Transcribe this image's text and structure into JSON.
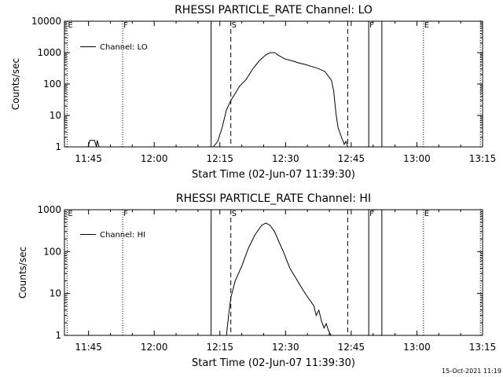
{
  "footer_timestamp": "15-Oct-2021 11:19",
  "chart_data": [
    {
      "type": "line",
      "title": "RHESSI PARTICLE_RATE Channel: LO",
      "xlabel": "Start Time (02-Jun-07 11:39:30)",
      "ylabel": "Counts/sec",
      "yscale": "log",
      "ylim": [
        1,
        10000
      ],
      "xlim_minutes_after_11_00": [
        39.5,
        135
      ],
      "x_ticks": [
        {
          "t": 45,
          "label": "11:45"
        },
        {
          "t": 60,
          "label": "12:00"
        },
        {
          "t": 75,
          "label": "12:15"
        },
        {
          "t": 90,
          "label": "12:30"
        },
        {
          "t": 105,
          "label": "12:45"
        },
        {
          "t": 120,
          "label": "13:00"
        },
        {
          "t": 135,
          "label": "13:15"
        }
      ],
      "y_ticks": [
        {
          "v": 1,
          "label": "1"
        },
        {
          "v": 10,
          "label": "10"
        },
        {
          "v": 100,
          "label": "100"
        },
        {
          "v": 1000,
          "label": "1000"
        },
        {
          "v": 10000,
          "label": "10000"
        }
      ],
      "legend": "Channel: LO",
      "markers": [
        {
          "t": 40.1,
          "style": "dotted",
          "label": "E"
        },
        {
          "t": 52.8,
          "style": "dotted",
          "label": "F"
        },
        {
          "t": 73.0,
          "style": "solid",
          "label": ""
        },
        {
          "t": 77.5,
          "style": "dashed",
          "label": "S"
        },
        {
          "t": 104.2,
          "style": "dashed",
          "label": ""
        },
        {
          "t": 109.0,
          "style": "solid",
          "label": "F"
        },
        {
          "t": 112.0,
          "style": "solid",
          "label": ""
        },
        {
          "t": 121.5,
          "style": "dotted",
          "label": "E"
        },
        {
          "t": 134.5,
          "style": "dotted",
          "label": ""
        }
      ],
      "series": [
        {
          "name": "Channel: LO",
          "segments": [
            [
              [
                44.9,
                1
              ],
              [
                45.3,
                1.6
              ],
              [
                45.8,
                1.6
              ],
              [
                46.4,
                1.6
              ],
              [
                46.8,
                1
              ],
              [
                47.0,
                1.6
              ],
              [
                47.4,
                1
              ]
            ],
            [
              [
                73.5,
                1
              ],
              [
                74.5,
                1.5
              ],
              [
                75.5,
                4
              ],
              [
                76.5,
                15
              ],
              [
                77.5,
                30
              ],
              [
                78.5,
                50
              ],
              [
                79.5,
                85
              ],
              [
                81.0,
                140
              ],
              [
                82.5,
                300
              ],
              [
                84.0,
                550
              ],
              [
                85.5,
                850
              ],
              [
                86.5,
                1000
              ],
              [
                87.5,
                1000
              ],
              [
                88.5,
                800
              ],
              [
                90.0,
                620
              ],
              [
                91.5,
                550
              ],
              [
                93.0,
                470
              ],
              [
                94.5,
                420
              ],
              [
                96.0,
                360
              ],
              [
                97.5,
                310
              ],
              [
                99.0,
                250
              ],
              [
                100.5,
                130
              ],
              [
                101.0,
                60
              ],
              [
                101.5,
                12
              ],
              [
                102.0,
                4
              ],
              [
                102.8,
                2
              ],
              [
                103.4,
                1.2
              ],
              [
                103.8,
                1.5
              ],
              [
                104.2,
                1
              ]
            ]
          ]
        }
      ]
    },
    {
      "type": "line",
      "title": "RHESSI PARTICLE_RATE Channel: HI",
      "xlabel": "Start Time (02-Jun-07 11:39:30)",
      "ylabel": "Counts/sec",
      "yscale": "log",
      "ylim": [
        1,
        1000
      ],
      "xlim_minutes_after_11_00": [
        39.5,
        135
      ],
      "x_ticks": [
        {
          "t": 45,
          "label": "11:45"
        },
        {
          "t": 60,
          "label": "12:00"
        },
        {
          "t": 75,
          "label": "12:15"
        },
        {
          "t": 90,
          "label": "12:30"
        },
        {
          "t": 105,
          "label": "12:45"
        },
        {
          "t": 120,
          "label": "13:00"
        },
        {
          "t": 135,
          "label": "13:15"
        }
      ],
      "y_ticks": [
        {
          "v": 1,
          "label": "1"
        },
        {
          "v": 10,
          "label": "10"
        },
        {
          "v": 100,
          "label": "100"
        },
        {
          "v": 1000,
          "label": "1000"
        }
      ],
      "legend": "Channel: HI",
      "markers": [
        {
          "t": 40.1,
          "style": "dotted",
          "label": "E"
        },
        {
          "t": 52.8,
          "style": "dotted",
          "label": "F"
        },
        {
          "t": 73.0,
          "style": "solid",
          "label": ""
        },
        {
          "t": 77.5,
          "style": "dashed",
          "label": "S"
        },
        {
          "t": 104.2,
          "style": "dashed",
          "label": ""
        },
        {
          "t": 109.0,
          "style": "solid",
          "label": "F"
        },
        {
          "t": 112.0,
          "style": "solid",
          "label": ""
        },
        {
          "t": 121.5,
          "style": "dotted",
          "label": "E"
        },
        {
          "t": 134.5,
          "style": "dotted",
          "label": ""
        }
      ],
      "series": [
        {
          "name": "Channel: HI",
          "segments": [
            [
              [
                76.5,
                1
              ],
              [
                77.0,
                3
              ],
              [
                77.5,
                8
              ],
              [
                78.5,
                20
              ],
              [
                80.0,
                45
              ],
              [
                81.5,
                120
              ],
              [
                83.0,
                250
              ],
              [
                84.5,
                420
              ],
              [
                85.5,
                480
              ],
              [
                86.5,
                420
              ],
              [
                87.5,
                300
              ],
              [
                88.5,
                170
              ],
              [
                89.5,
                100
              ],
              [
                91.0,
                40
              ],
              [
                92.5,
                22
              ],
              [
                94.0,
                12
              ],
              [
                95.5,
                7
              ],
              [
                96.5,
                5
              ],
              [
                97.0,
                3
              ],
              [
                97.6,
                4
              ],
              [
                98.2,
                2.2
              ],
              [
                98.8,
                1.5
              ],
              [
                99.3,
                1.9
              ],
              [
                99.8,
                1.3
              ],
              [
                100.4,
                1
              ]
            ]
          ]
        }
      ]
    }
  ]
}
